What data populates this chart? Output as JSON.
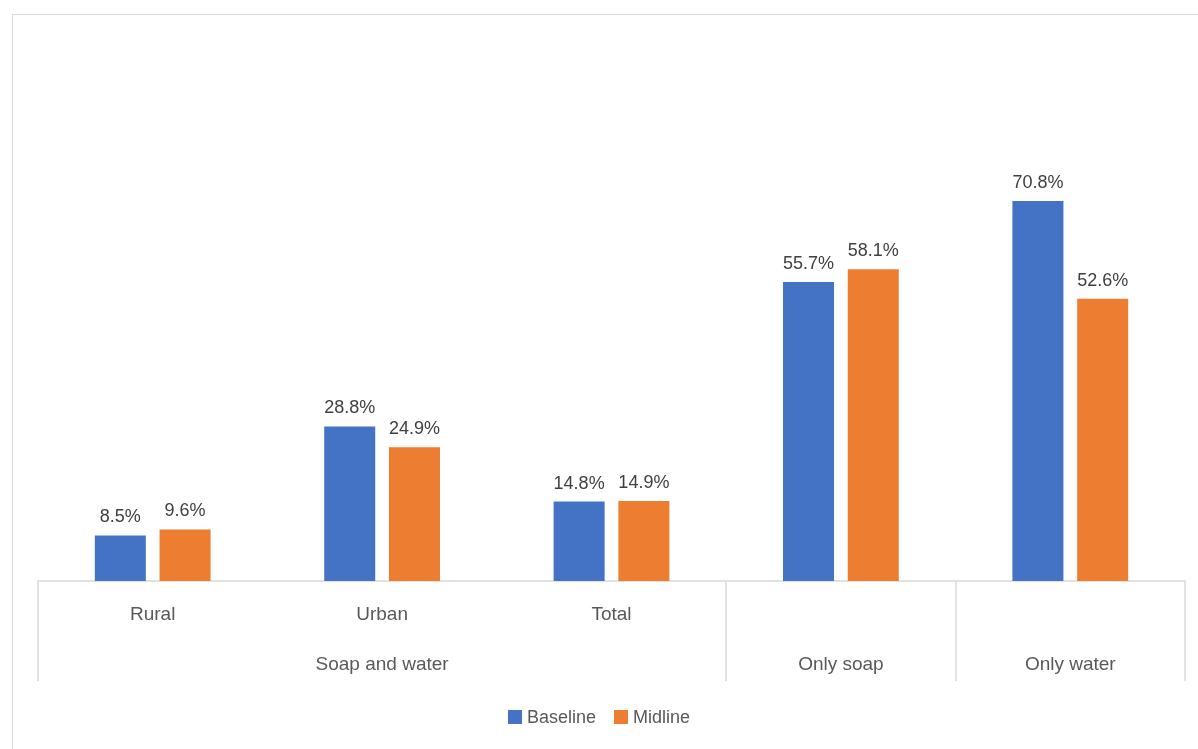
{
  "chart_data": {
    "type": "bar",
    "categories": [
      "Rural",
      "Urban",
      "Total",
      null,
      null
    ],
    "series": [
      {
        "name": "Baseline",
        "color": "#4472c4",
        "values": [
          8.5,
          28.8,
          14.8,
          55.7,
          70.8
        ],
        "value_labels": [
          "8.5%",
          "28.8%",
          "14.8%",
          "55.7%",
          "70.8%"
        ]
      },
      {
        "name": "Midline",
        "color": "#ed7d31",
        "values": [
          9.6,
          24.9,
          14.9,
          58.1,
          52.6
        ],
        "value_labels": [
          "9.6%",
          "24.9%",
          "14.9%",
          "58.1%",
          "52.6%"
        ]
      }
    ],
    "annotations": [
      "Soap and water",
      "Only soap",
      "Only water"
    ],
    "legend": "bottom",
    "tick_labels": "x"
  }
}
